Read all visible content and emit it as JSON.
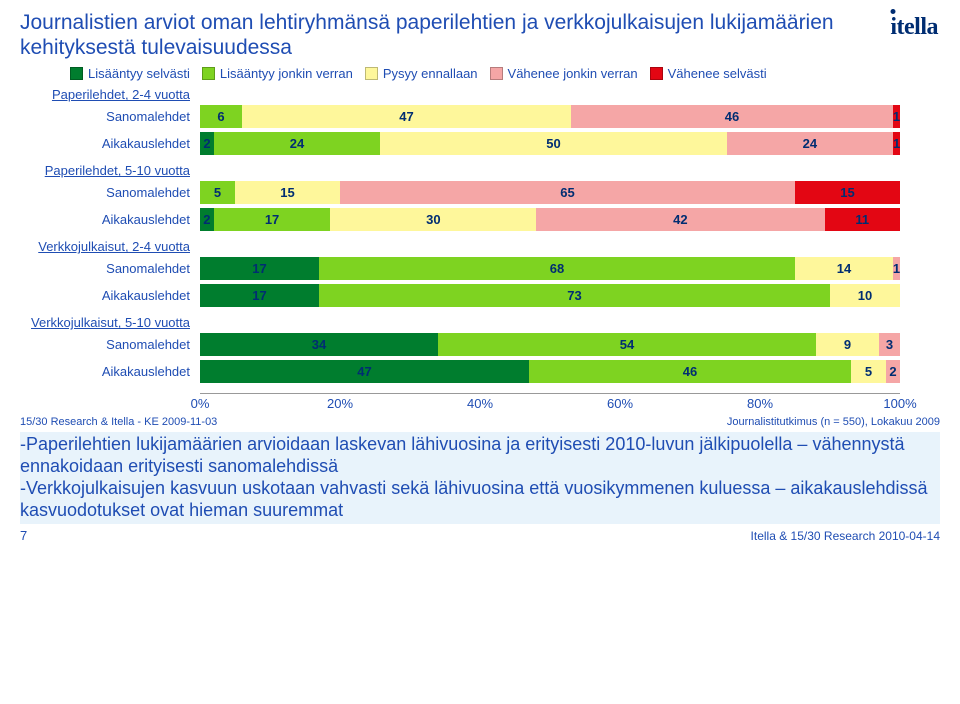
{
  "title": "Journalistien arviot oman lehtiryhmänsä paperilehtien ja verkkojulkaisujen lukijamäärien kehityksestä tulevaisuudessa",
  "title_color": "#1f4db3",
  "title_fontsize": 21,
  "logo": {
    "text": "itella",
    "color": "#002d72"
  },
  "legend": {
    "fontsize": 13,
    "color": "#1f4db3",
    "items": [
      {
        "label": "Lisääntyy selvästi",
        "color": "#007d2e"
      },
      {
        "label": "Lisääntyy jonkin verran",
        "color": "#7ed321"
      },
      {
        "label": "Pysyy ennallaan",
        "color": "#fef79b"
      },
      {
        "label": "Vähenee jonkin verran",
        "color": "#f5a6a6"
      },
      {
        "label": "Vähenee selvästi",
        "color": "#e30613"
      }
    ]
  },
  "groups": [
    {
      "heading": "Paperilehdet, 2-4 vuotta",
      "rows": [
        {
          "label": "Sanomalehdet",
          "values": [
            0,
            6,
            47,
            46,
            1
          ]
        },
        {
          "label": "Aikakauslehdet",
          "values": [
            2,
            24,
            50,
            24,
            1
          ]
        }
      ]
    },
    {
      "heading": "Paperilehdet, 5-10 vuotta",
      "rows": [
        {
          "label": "Sanomalehdet",
          "values": [
            0,
            5,
            15,
            65,
            15
          ]
        },
        {
          "label": "Aikakauslehdet",
          "values": [
            2,
            17,
            30,
            42,
            11
          ]
        }
      ]
    },
    {
      "heading": "Verkkojulkaisut, 2-4 vuotta",
      "rows": [
        {
          "label": "Sanomalehdet",
          "values": [
            17,
            68,
            14,
            1,
            0
          ]
        },
        {
          "label": "Aikakauslehdet",
          "values": [
            17,
            73,
            10,
            0,
            0
          ]
        }
      ]
    },
    {
      "heading": "Verkkojulkaisut, 5-10 vuotta",
      "rows": [
        {
          "label": "Sanomalehdet",
          "values": [
            34,
            54,
            9,
            3,
            0
          ]
        },
        {
          "label": "Aikakauslehdet",
          "values": [
            47,
            46,
            5,
            2,
            0
          ]
        }
      ]
    }
  ],
  "axis": {
    "ticks": [
      "0%",
      "20%",
      "40%",
      "60%",
      "80%",
      "100%"
    ],
    "positions": [
      0,
      20,
      40,
      60,
      80,
      100
    ],
    "fontsize": 13,
    "color": "#1f4db3"
  },
  "group_heading_style": {
    "fontsize": 13,
    "color": "#1f4db3"
  },
  "row_label_style": {
    "fontsize": 13,
    "color": "#1f4db3"
  },
  "value_label_style": {
    "fontsize": 13,
    "color": "#002d72",
    "fontweight": "bold"
  },
  "source_left": {
    "text": "15/30 Research & Itella - KE 2009-11-03",
    "color": "#1f4db3",
    "fontsize": 11
  },
  "source_right": {
    "text": "Journalistitutkimus (n = 550), Lokakuu 2009",
    "color": "#1f4db3",
    "fontsize": 11
  },
  "callout": {
    "text": "-Paperilehtien lukijamäärien arvioidaan laskevan lähivuosina ja erityisesti 2010-luvun jälkipuolella – vähennystä ennakoidaan erityisesti sanomalehdissä\n-Verkkojulkaisujen kasvuun uskotaan vahvasti sekä lähivuosina että vuosikymmenen kuluessa – aikakauslehdissä kasvuodotukset ovat hieman suuremmat",
    "color": "#1f4db3",
    "fontsize": 18,
    "background": "#e8f3fb"
  },
  "footer": {
    "page": "7",
    "right": "Itella & 15/30 Research  2010-04-14",
    "color": "#1f4db3"
  }
}
